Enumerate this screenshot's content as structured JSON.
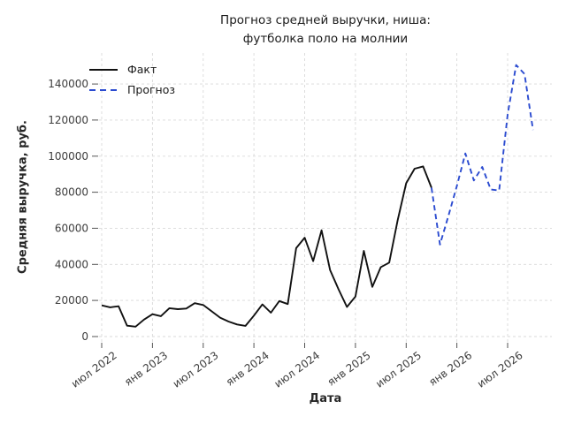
{
  "title": {
    "line1": "Прогноз средней выручки, ниша:",
    "line2": "футболка поло на молнии"
  },
  "axes": {
    "x_label": "Дата",
    "y_label": "Средняя выручка, руб."
  },
  "colors": {
    "fact": "#111111",
    "forecast": "#2b4bd0",
    "grid": "#d9d9d9",
    "tick_text": "#3d3d3d"
  },
  "chart_data": {
    "type": "line",
    "title": "Прогноз средней выручки, ниша: футболка поло на молнии",
    "xlabel": "Дата",
    "ylabel": "Средняя выручка, руб.",
    "frequency": "monthly",
    "x_start": "2022-07",
    "grid": true,
    "legend_position": "upper-left",
    "ylim": [
      -5000,
      156000
    ],
    "y_ticks": [
      0,
      20000,
      40000,
      60000,
      80000,
      100000,
      120000,
      140000
    ],
    "x_ticks": [
      {
        "label": "июл 2022",
        "month_offset": 0
      },
      {
        "label": "янв 2023",
        "month_offset": 6
      },
      {
        "label": "июл 2023",
        "month_offset": 12
      },
      {
        "label": "янв 2024",
        "month_offset": 18
      },
      {
        "label": "июл 2024",
        "month_offset": 24
      },
      {
        "label": "янв 2025",
        "month_offset": 30
      },
      {
        "label": "июл 2025",
        "month_offset": 36
      },
      {
        "label": "янв 2026",
        "month_offset": 42
      },
      {
        "label": "июл 2026",
        "month_offset": 48
      }
    ],
    "series": [
      {
        "name": "Факт",
        "color": "#111111",
        "line_style": "solid",
        "start_month_offset": 0,
        "start_month": "2022-07",
        "values": [
          17300,
          16200,
          16800,
          6000,
          5500,
          9400,
          12400,
          11300,
          15700,
          15200,
          15500,
          18500,
          17500,
          14000,
          10500,
          8300,
          6700,
          5900,
          11600,
          17800,
          13200,
          19700,
          18000,
          49000,
          54800,
          41800,
          58900,
          36900,
          26200,
          16400,
          22200,
          47500,
          27500,
          38500,
          41000,
          64600,
          85000,
          93000,
          94300,
          82500
        ]
      },
      {
        "name": "Прогноз",
        "color": "#2b4bd0",
        "line_style": "dashed",
        "start_month_offset": 39,
        "start_month": "2025-10",
        "values": [
          82500,
          51000,
          67000,
          83500,
          101500,
          86500,
          94000,
          81500,
          81000,
          123000,
          150500,
          145500,
          114500
        ]
      }
    ]
  }
}
